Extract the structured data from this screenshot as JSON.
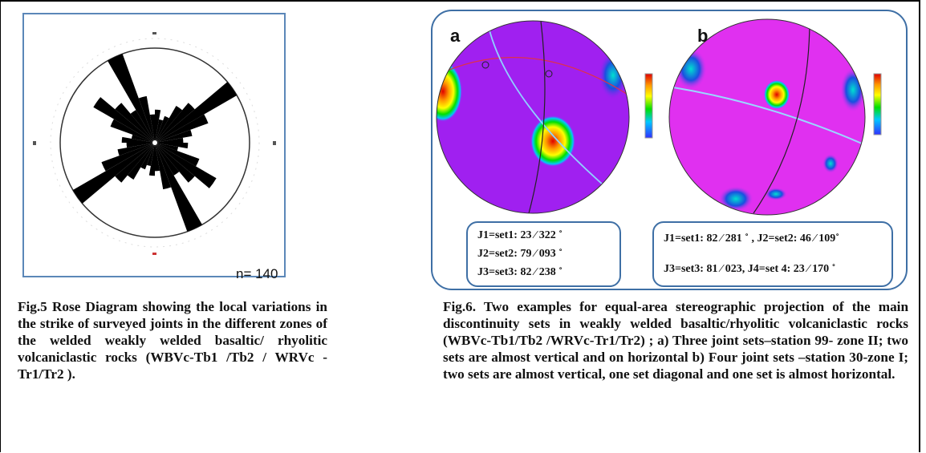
{
  "fig5": {
    "n_label": "n= 140",
    "caption": "Fig.5 Rose Diagram showing the local variations in the strike of surveyed joints in the different zones of the welded weakly welded basaltic/ rhyolitic volcaniclastic rocks (WBVc-Tb1 /Tb2 / WRVc - Tr1/Tr2 )."
  },
  "fig6": {
    "panel_a": {
      "letter": "a",
      "legend": [
        "J1=set1: 23 ⁄ 322 ˚",
        "J2=set2: 79 ⁄ 093 ˚",
        "J3=set3: 82 ⁄ 238 ˚"
      ]
    },
    "panel_b": {
      "letter": "b",
      "legend": [
        "J1=set1: 82 ⁄ 281 ˚ ,  J2=set2: 46 ⁄ 109˚",
        "J3=set3: 81 ⁄ 023,  J4=set 4: 23 ⁄ 170 ˚"
      ]
    },
    "caption": "Fig.6. Two examples for equal-area stereographic projection of the main discontinuity sets in weakly welded basaltic/rhyolitic volcaniclastic rocks (WBVc-Tb1/Tb2 /WRVc-Tr1/Tr2) ; a) Three joint sets–station 99- zone II; two sets are almost vertical and on horizontal b) Four joint sets –station 30-zone I; two sets are almost vertical, one set diagonal and one set is almost horizontal."
  },
  "colors": {
    "frame_blue": "#3e6fa5",
    "stereonet_purple": "#a020f0",
    "stereonet_magenta": "#e030f0"
  }
}
